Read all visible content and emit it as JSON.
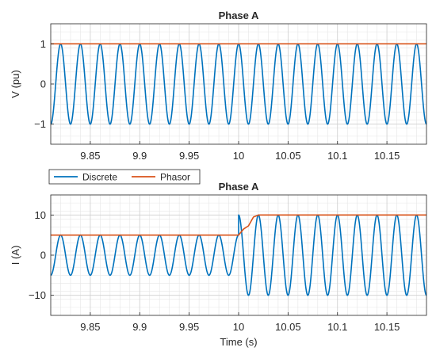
{
  "chart_data": [
    {
      "type": "line",
      "title": "Phase A",
      "xlabel": "",
      "ylabel": "V (pu)",
      "xlim": [
        9.81,
        10.19
      ],
      "ylim": [
        -1.5,
        1.5
      ],
      "x_ticks": [
        9.85,
        9.9,
        9.95,
        10,
        10.05,
        10.1,
        10.15
      ],
      "x_tick_labels": [
        "9.85",
        "9.9",
        "9.95",
        "10",
        "10.05",
        "10.1",
        "10.15"
      ],
      "y_ticks": [
        -1,
        0,
        1
      ],
      "y_tick_labels": [
        "−1",
        "0",
        "1"
      ],
      "grid": "on (major and minor)",
      "series": [
        {
          "name": "Discrete",
          "color": "#0072BD",
          "kind": "sinusoid",
          "frequency_hz": 50,
          "segments": [
            {
              "t_start": 9.81,
              "t_end": 10.19,
              "amplitude": 1,
              "phase_deg": 0
            }
          ]
        },
        {
          "name": "Phasor",
          "color": "#D95319",
          "kind": "magnitude",
          "points": [
            [
              9.81,
              1
            ],
            [
              10.19,
              1
            ]
          ]
        }
      ]
    },
    {
      "type": "line",
      "title": "Phase A",
      "xlabel": "Time (s)",
      "ylabel": "I (A)",
      "xlim": [
        9.81,
        10.19
      ],
      "ylim": [
        -15,
        15
      ],
      "x_ticks": [
        9.85,
        9.9,
        9.95,
        10,
        10.05,
        10.1,
        10.15
      ],
      "x_tick_labels": [
        "9.85",
        "9.9",
        "9.95",
        "10",
        "10.05",
        "10.1",
        "10.15"
      ],
      "y_ticks": [
        -10,
        0,
        10
      ],
      "y_tick_labels": [
        "−10",
        "0",
        "10"
      ],
      "grid": "on (major and minor)",
      "legend": {
        "placement": "top-left, above plot",
        "entries": [
          "Discrete",
          "Phasor"
        ]
      },
      "series": [
        {
          "name": "Discrete",
          "color": "#0072BD",
          "kind": "sinusoid",
          "frequency_hz": 50,
          "segments": [
            {
              "t_start": 9.81,
              "t_end": 10.0,
              "amplitude": 5,
              "phase_deg": 0
            },
            {
              "t_start": 10.0,
              "t_end": 10.19,
              "amplitude": 10,
              "phase_deg": 0
            }
          ]
        },
        {
          "name": "Phasor",
          "color": "#D95319",
          "kind": "magnitude",
          "points": [
            [
              9.81,
              5
            ],
            [
              10.0,
              5
            ],
            [
              10.005,
              6.5
            ],
            [
              10.01,
              7.3
            ],
            [
              10.015,
              9.5
            ],
            [
              10.02,
              10
            ],
            [
              10.19,
              10
            ]
          ]
        }
      ]
    }
  ]
}
